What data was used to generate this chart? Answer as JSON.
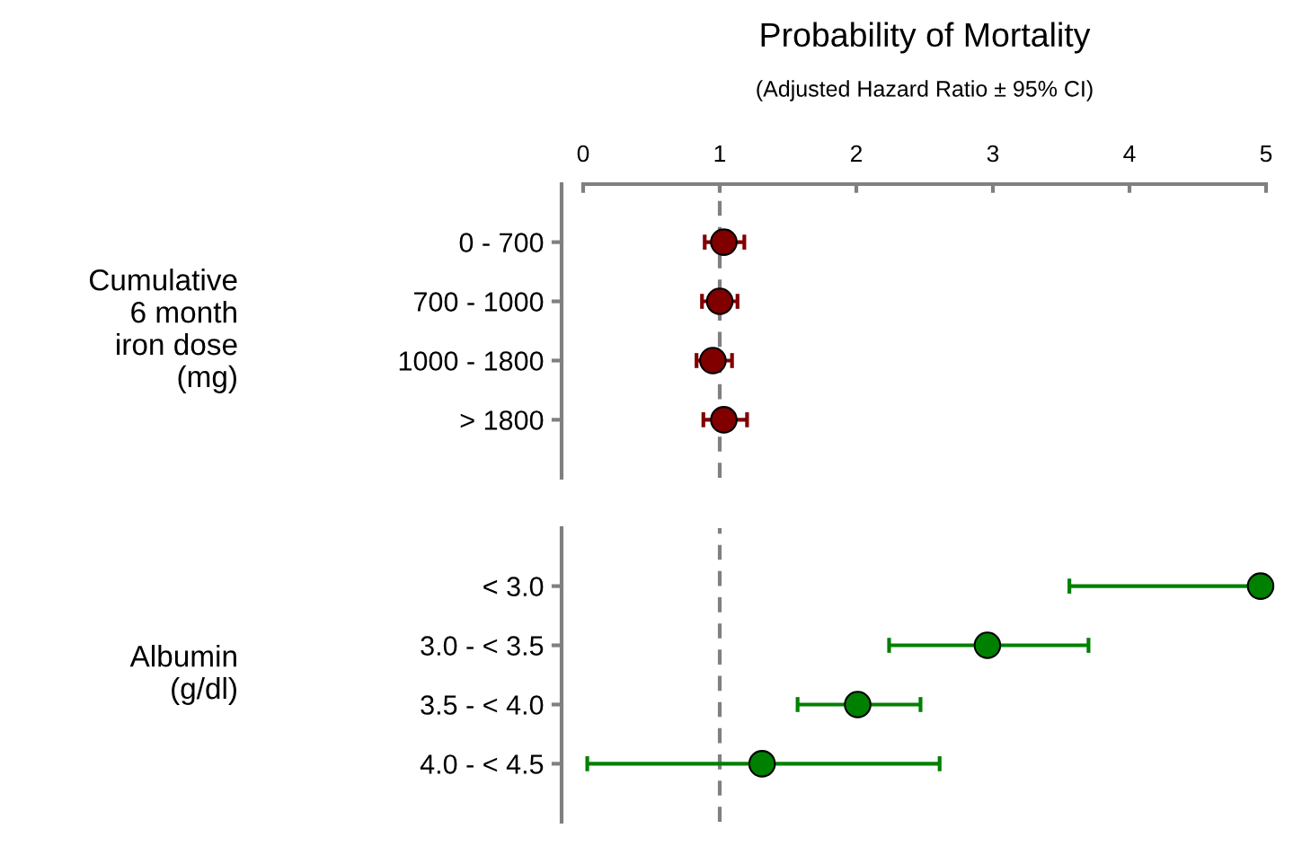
{
  "chart_data": [
    {
      "type": "scatter",
      "orientation": "horizontal",
      "title": "Probability of Mortality",
      "subtitle": "(Adjusted Hazard Ratio ± 95% CI)",
      "ylabel": "Cumulative\n6 month\niron dose\n(mg)",
      "categories": [
        "0 - 700",
        "700 - 1000",
        "1000 - 1800",
        "> 1800"
      ],
      "series": [
        {
          "color": "#800000",
          "values": [
            1.03,
            1.0,
            0.95,
            1.03
          ],
          "errors": [
            [
              0.89,
              1.18
            ],
            [
              0.87,
              1.13
            ],
            [
              0.83,
              1.09
            ],
            [
              0.88,
              1.2
            ]
          ]
        }
      ],
      "xlim": [
        0,
        5
      ],
      "xticks": [
        0,
        1,
        2,
        3,
        4,
        5
      ],
      "marker": "circle",
      "grid": false,
      "legend": false,
      "ref_lines": [
        {
          "axis": "x",
          "value": 1,
          "color": "#808080",
          "line_style": "dashed"
        }
      ]
    },
    {
      "type": "scatter",
      "orientation": "horizontal",
      "ylabel": "Albumin\n(g/dl)",
      "categories": [
        "< 3.0",
        "3.0 - < 3.5",
        "3.5 - < 4.0",
        "4.0 - < 4.5"
      ],
      "series": [
        {
          "color": "#008000",
          "values": [
            4.96,
            2.96,
            2.01,
            1.31
          ],
          "errors": [
            [
              3.56,
              4.96
            ],
            [
              2.24,
              3.7
            ],
            [
              1.57,
              2.47
            ],
            [
              0.03,
              2.61
            ]
          ]
        }
      ],
      "xlim": [
        0,
        5
      ],
      "tick_labels": "y",
      "marker": "circle",
      "grid": false,
      "legend": false,
      "ref_lines": [
        {
          "axis": "x",
          "value": 1,
          "color": "#808080",
          "line_style": "dashed"
        }
      ]
    }
  ]
}
